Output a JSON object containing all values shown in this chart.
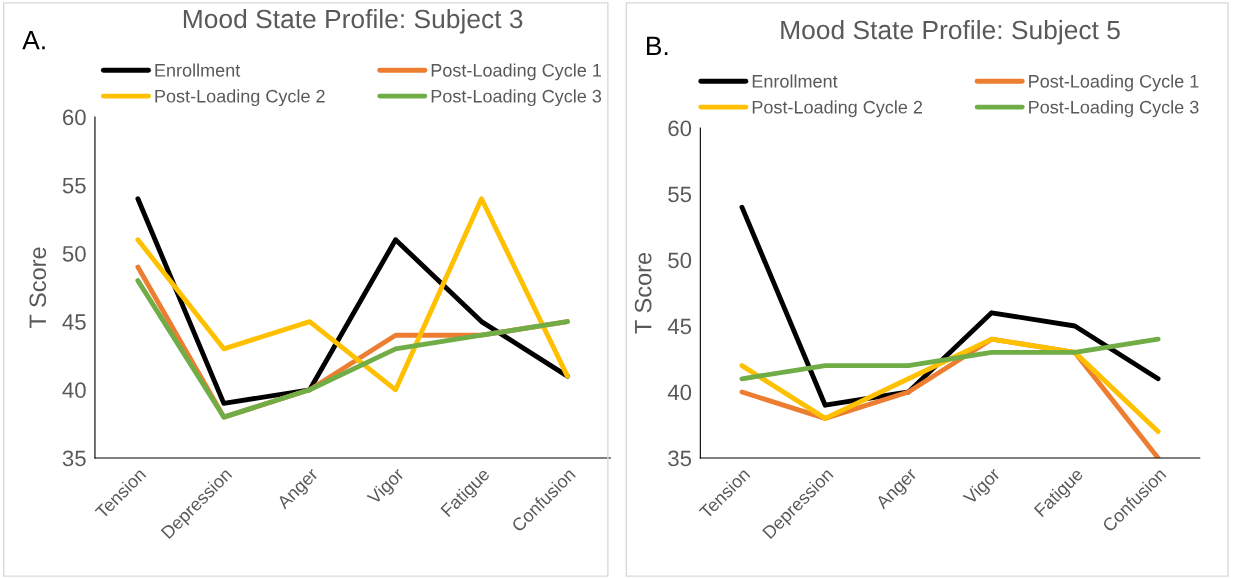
{
  "chart_data": [
    {
      "type": "line",
      "title": "Mood State Profile: Subject 3",
      "ylabel": "T Score",
      "annotations": [
        "A."
      ],
      "categories": [
        "Tension",
        "Depression",
        "Anger",
        "Vigor",
        "Fatigue",
        "Confusion"
      ],
      "ylim": [
        35,
        60
      ],
      "yticks": [
        35,
        40,
        45,
        50,
        55,
        60
      ],
      "grid": false,
      "legend": "top",
      "marker": "none",
      "line_style": "solid",
      "series": [
        {
          "name": "Enrollment",
          "color": "#000000",
          "values": [
            54,
            39,
            40,
            51,
            45,
            41
          ]
        },
        {
          "name": "Post-Loading Cycle 1",
          "color": "#ed7d31",
          "values": [
            49,
            38,
            40,
            44,
            44,
            45
          ]
        },
        {
          "name": "Post-Loading Cycle 2",
          "color": "#ffc000",
          "values": [
            51,
            43,
            45,
            40,
            54,
            41
          ]
        },
        {
          "name": "Post-Loading Cycle 3",
          "color": "#70ad47",
          "values": [
            48,
            38,
            40,
            43,
            44,
            45
          ]
        }
      ]
    },
    {
      "type": "line",
      "title": "Mood State Profile: Subject 5",
      "ylabel": "T Score",
      "annotations": [
        "B."
      ],
      "categories": [
        "Tension",
        "Depression",
        "Anger",
        "Vigor",
        "Fatigue",
        "Confusion"
      ],
      "ylim": [
        35,
        60
      ],
      "yticks": [
        35,
        40,
        45,
        50,
        55,
        60
      ],
      "grid": false,
      "legend": "top",
      "marker": "none",
      "line_style": "solid",
      "series": [
        {
          "name": "Enrollment",
          "color": "#000000",
          "values": [
            54,
            39,
            40,
            46,
            45,
            41
          ]
        },
        {
          "name": "Post-Loading Cycle 1",
          "color": "#ed7d31",
          "values": [
            40,
            38,
            40,
            44,
            43,
            35
          ]
        },
        {
          "name": "Post-Loading Cycle 2",
          "color": "#ffc000",
          "values": [
            42,
            38,
            41,
            44,
            43,
            37
          ]
        },
        {
          "name": "Post-Loading Cycle 3",
          "color": "#70ad47",
          "values": [
            41,
            42,
            42,
            43,
            43,
            44
          ]
        }
      ]
    }
  ]
}
